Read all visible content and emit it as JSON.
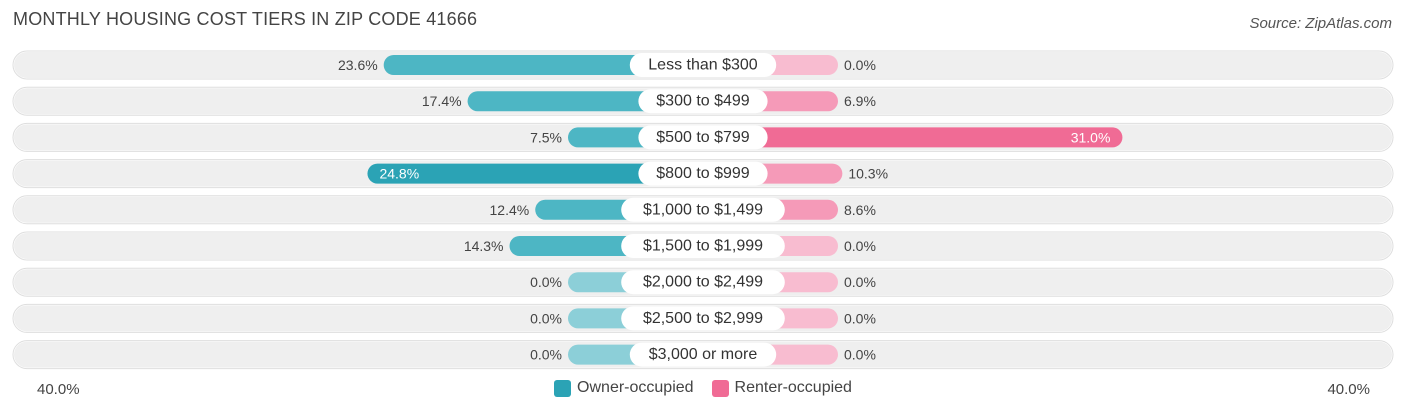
{
  "header": {
    "title": "MONTHLY HOUSING COST TIERS IN ZIP CODE 41666",
    "source": "Source: ZipAtlas.com"
  },
  "axis": {
    "left_label": "40.0%",
    "right_label": "40.0%"
  },
  "legend": {
    "owner_label": "Owner-occupied",
    "renter_label": "Renter-occupied"
  },
  "colors": {
    "owner": "#4db6c4",
    "owner_strong": "#2ba3b5",
    "owner_light": "#8ccfd8",
    "renter": "#f59ab8",
    "renter_strong": "#f06b95",
    "renter_light": "#f8bcd0",
    "row_bg": "#efefef"
  },
  "chart_data": {
    "type": "bar",
    "orientation": "diverging-horizontal",
    "xlim": [
      -40,
      40
    ],
    "categories": [
      "Less than $300",
      "$300 to $499",
      "$500 to $799",
      "$800 to $999",
      "$1,000 to $1,499",
      "$1,500 to $1,999",
      "$2,000 to $2,499",
      "$2,500 to $2,999",
      "$3,000 or more"
    ],
    "series": [
      {
        "name": "Owner-occupied",
        "values": [
          23.6,
          17.4,
          7.5,
          24.8,
          12.4,
          14.3,
          0.0,
          0.0,
          0.0
        ],
        "labels": [
          "23.6%",
          "17.4%",
          "7.5%",
          "24.8%",
          "12.4%",
          "14.3%",
          "0.0%",
          "0.0%",
          "0.0%"
        ]
      },
      {
        "name": "Renter-occupied",
        "values": [
          0.0,
          6.9,
          31.0,
          10.3,
          8.6,
          0.0,
          0.0,
          0.0,
          0.0
        ],
        "labels": [
          "0.0%",
          "6.9%",
          "31.0%",
          "10.3%",
          "8.6%",
          "0.0%",
          "0.0%",
          "0.0%",
          "0.0%"
        ]
      }
    ]
  }
}
